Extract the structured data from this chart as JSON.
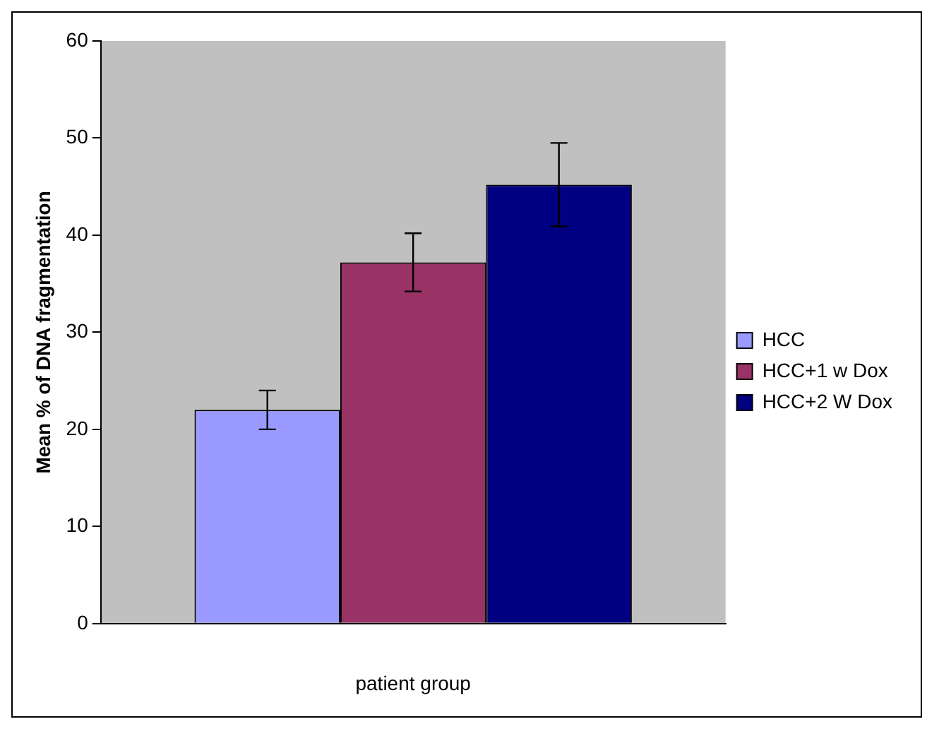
{
  "chart_data": {
    "type": "bar",
    "ylabel": "Mean % of DNA fragmentation",
    "xlabel": "patient group",
    "categories": [
      null
    ],
    "series": [
      {
        "name": "HCC",
        "color": "#9999ff",
        "values": [
          22
        ],
        "errors": [
          2
        ]
      },
      {
        "name": "HCC+1 w Dox",
        "color": "#993366",
        "values": [
          37.2
        ],
        "errors": [
          3
        ]
      },
      {
        "name": "HCC+2 W Dox",
        "color": "#000080",
        "values": [
          45.2
        ],
        "errors": [
          4.3
        ]
      }
    ],
    "ylim": [
      0,
      60
    ],
    "yticks": [
      0,
      10,
      20,
      30,
      40,
      50,
      60
    ],
    "grid": false,
    "legend": "right"
  }
}
